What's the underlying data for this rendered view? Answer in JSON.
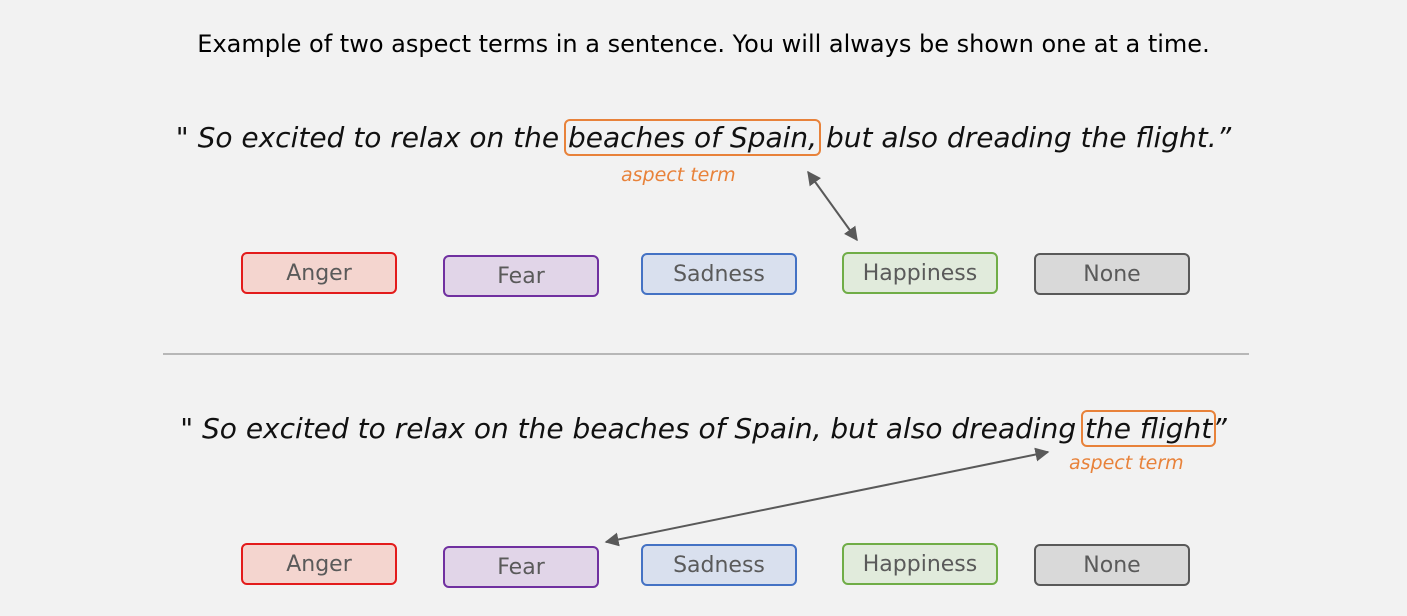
{
  "heading": "Example of two aspect terms in a sentence. You will always be shown one at a time.",
  "sentence_1": {
    "before": "\" So excited to relax on the ",
    "term": "beaches of Spain,",
    "after": " but also dreading the flight.”",
    "term_label": "aspect term"
  },
  "sentence_2": {
    "before": "\" So excited to relax on the beaches of Spain, but also dreading ",
    "term": "the flight",
    "after": "”",
    "term_label": "aspect term"
  },
  "options_1": [
    "Anger",
    "Fear",
    "Sadness",
    "Happiness",
    "None"
  ],
  "options_2": [
    "Anger",
    "Fear",
    "Sadness",
    "Happiness",
    "None"
  ],
  "colors": {
    "term": "#e8823a",
    "anger": "#e31b1b",
    "fear": "#7030a0",
    "sadness": "#4472c4",
    "happiness": "#70ad47",
    "none": "#595959",
    "arrow": "#595959"
  }
}
